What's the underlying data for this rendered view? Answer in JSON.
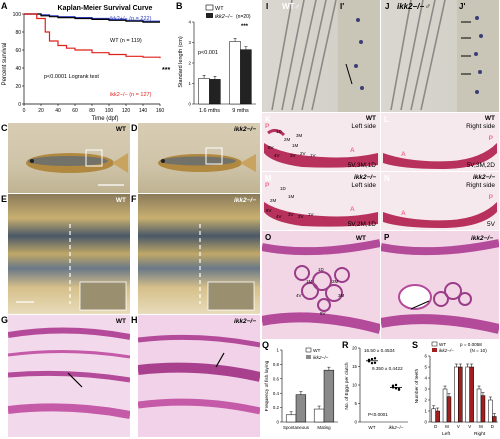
{
  "panels": {
    "A": {
      "label": "A",
      "title": "Kaplan-Meier Survival Curve",
      "ylabel": "Percent survival",
      "xlabel": "Time (dpf)",
      "legend": [
        {
          "text": "ikk2+/− (n = 222)",
          "color": "#2f3fbf"
        },
        {
          "text": "WT (n = 119)",
          "color": "#000000"
        },
        {
          "text": "ikk2−/− (n = 127)",
          "color": "#e0201b"
        }
      ],
      "stat": "p<0.0001 Logrank test",
      "sig": "***"
    },
    "B": {
      "label": "B",
      "ylabel": "Standard length (cm)",
      "legend": [
        "WT",
        "ikk2−/−"
      ],
      "n": "(n=20)",
      "p": "p<0.001",
      "sig": "***",
      "categories": [
        "1.6 mths",
        "9 mths"
      ]
    },
    "C": {
      "label": "C",
      "tag": "WT"
    },
    "D": {
      "label": "D",
      "tag": "ikk2−/−"
    },
    "E": {
      "label": "E",
      "tag": "WT"
    },
    "F": {
      "label": "F",
      "tag": "ikk2−/−"
    },
    "G": {
      "label": "G",
      "tag": "WT"
    },
    "H": {
      "label": "H",
      "tag": "ikk2−/−"
    },
    "I": {
      "label": "I",
      "tag": "WT♂"
    },
    "I2": {
      "label": "I'"
    },
    "J": {
      "label": "J",
      "tag": "ikk2−/−♂"
    },
    "J2": {
      "label": "J'"
    },
    "K": {
      "label": "K",
      "tag": "WT",
      "side": "Left side",
      "formula": "5V,3M,1D",
      "teeth": [
        "1D",
        "2M",
        "3M",
        "1M",
        "5V",
        "4V",
        "3V",
        "2V",
        "1V"
      ],
      "letters": [
        "P",
        "A"
      ]
    },
    "L": {
      "label": "L",
      "tag": "WT",
      "side": "Right side",
      "formula": "5V,3M,2D",
      "letters": [
        "P",
        "A"
      ]
    },
    "M": {
      "label": "M",
      "tag": "ikk2−/−",
      "side": "Left side",
      "formula": "5V,2M,1D",
      "teeth": [
        "1D",
        "1M",
        "2M",
        "5V",
        "4V",
        "3V",
        "2V",
        "1V"
      ],
      "letters": [
        "P",
        "A"
      ]
    },
    "N": {
      "label": "N",
      "tag": "ikk2−/−",
      "side": "Right side",
      "formula": "5V",
      "letters": [
        "P",
        "A"
      ]
    },
    "O": {
      "label": "O",
      "tag": "WT",
      "teeth": [
        "1D",
        "1M",
        "2M",
        "3M",
        "4V",
        "5V"
      ]
    },
    "P": {
      "label": "P",
      "tag": "ikk2−/−"
    },
    "Q": {
      "label": "Q",
      "ylabel": "Frequency of fish laying",
      "legend": [
        "WT",
        "ikk2−/−"
      ],
      "categories": [
        "Spontaneous",
        "Mating"
      ]
    },
    "R": {
      "label": "R",
      "ylabel": "No. of Eggs per clutch",
      "val1": "16.50 ± 0.4534",
      "val2": "9.350 ± 0.4422",
      "p": "P<0.0001",
      "categories": [
        "WT",
        "ikk2−/−"
      ]
    },
    "S": {
      "label": "S",
      "ylabel": "Number of teeth",
      "legend": [
        "WT",
        "ikk2−/−"
      ],
      "p": "p = 0.0058",
      "n": "(N = 10)",
      "groups": [
        "Left",
        "Right"
      ],
      "categories": [
        "D",
        "M",
        "V",
        "V",
        "M",
        "D"
      ]
    }
  },
  "chart_data": [
    {
      "type": "line",
      "panel": "A",
      "title": "Kaplan-Meier Survival Curve",
      "xlabel": "Time (dpf)",
      "ylabel": "Percent survival",
      "xlim": [
        0,
        160
      ],
      "ylim": [
        0,
        100
      ],
      "xticks": [
        0,
        20,
        40,
        60,
        80,
        100,
        120,
        140,
        160
      ],
      "yticks": [
        0,
        20,
        40,
        60,
        80,
        100
      ],
      "series": [
        {
          "name": "ikk2+/− (n = 222)",
          "color": "#2f3fbf",
          "x": [
            0,
            20,
            30,
            40,
            60,
            80,
            100,
            120,
            140,
            160
          ],
          "y": [
            100,
            99,
            98,
            97,
            96,
            95,
            94,
            93,
            92,
            92
          ]
        },
        {
          "name": "WT (n = 119)",
          "color": "#000000",
          "x": [
            0,
            20,
            30,
            40,
            60,
            80,
            100,
            120,
            140,
            160
          ],
          "y": [
            100,
            98,
            97,
            96,
            95,
            94,
            93,
            92,
            91,
            91
          ]
        },
        {
          "name": "ikk2−/− (n = 127)",
          "color": "#e0201b",
          "x": [
            0,
            15,
            25,
            30,
            40,
            50,
            60,
            80,
            100,
            120,
            140,
            160
          ],
          "y": [
            100,
            95,
            80,
            70,
            65,
            62,
            60,
            57,
            55,
            53,
            52,
            51
          ]
        }
      ]
    },
    {
      "type": "bar",
      "panel": "B",
      "ylabel": "Standard length (cm)",
      "categories": [
        "1.6 mths",
        "9 mths"
      ],
      "ylim": [
        0,
        4
      ],
      "yticks": [
        0,
        1,
        2,
        3,
        4
      ],
      "series": [
        {
          "name": "WT",
          "values": [
            1.25,
            3.05
          ]
        },
        {
          "name": "ikk2−/−",
          "values": [
            1.2,
            2.65
          ]
        }
      ]
    },
    {
      "type": "bar",
      "panel": "Q",
      "ylabel": "Frequency of fish laying",
      "categories": [
        "Spontaneous",
        "Mating"
      ],
      "ylim": [
        0,
        1
      ],
      "yticks": [
        0,
        0.2,
        0.4,
        0.6,
        0.8,
        1.0
      ],
      "series": [
        {
          "name": "WT",
          "values": [
            0.1,
            0.18
          ]
        },
        {
          "name": "ikk2−/−",
          "values": [
            0.38,
            0.72
          ]
        }
      ]
    },
    {
      "type": "scatter",
      "panel": "R",
      "ylabel": "No. of Eggs per clutch",
      "categories": [
        "WT",
        "ikk2−/−"
      ],
      "ylim": [
        0,
        20
      ],
      "yticks": [
        0,
        5,
        10,
        15,
        20
      ],
      "series": [
        {
          "name": "WT",
          "values": [
            16.5,
            17,
            16,
            16.8,
            15.9,
            17.2,
            16.4
          ]
        },
        {
          "name": "ikk2−/−",
          "values": [
            9.35,
            10,
            8.7,
            9.8,
            9.1,
            8.9,
            9.6
          ]
        }
      ]
    },
    {
      "type": "bar",
      "panel": "S",
      "ylabel": "Number of teeth",
      "categories": [
        "D",
        "M",
        "V",
        "V",
        "M",
        "D"
      ],
      "ylim": [
        0,
        6
      ],
      "yticks": [
        0,
        1,
        2,
        3,
        4,
        5,
        6
      ],
      "series": [
        {
          "name": "WT",
          "values": [
            1.2,
            3.0,
            5.0,
            5.0,
            3.0,
            2.0
          ]
        },
        {
          "name": "ikk2−/−",
          "values": [
            1.0,
            2.3,
            5.0,
            5.0,
            2.4,
            0.5
          ]
        }
      ]
    }
  ],
  "colors": {
    "wt": "#ffffff",
    "mut": "#a02020",
    "red": "#e0201b",
    "blue": "#2f3fbf"
  }
}
